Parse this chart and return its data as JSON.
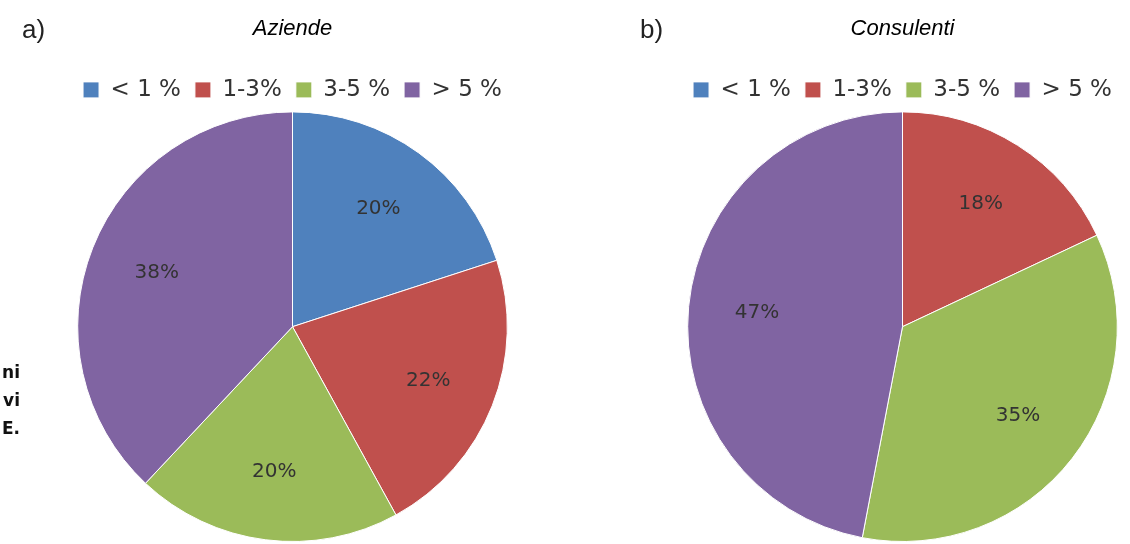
{
  "chart_data": [
    {
      "type": "pie",
      "title": "Aziende",
      "categories": [
        "< 1 %",
        "1-3%",
        "3-5 %",
        "> 5 %"
      ],
      "values": [
        20,
        22,
        20,
        38
      ],
      "colors": [
        "#4f81bd",
        "#c0504d",
        "#9bbb59",
        "#8064a2"
      ],
      "value_labels": [
        "20%",
        "22%",
        "20%",
        "38%"
      ],
      "legend": "top",
      "annotations": [
        "a)",
        "ni",
        "vi",
        "E."
      ]
    },
    {
      "type": "pie",
      "title": "Consulenti",
      "categories": [
        "< 1 %",
        "1-3%",
        "3-5 %",
        "> 5 %"
      ],
      "values": [
        0,
        18,
        35,
        47
      ],
      "colors": [
        "#4f81bd",
        "#c0504d",
        "#9bbb59",
        "#8064a2"
      ],
      "value_labels": [
        null,
        "18%",
        "35%",
        "47%"
      ],
      "legend": "top",
      "annotations": [
        "b)"
      ]
    }
  ]
}
